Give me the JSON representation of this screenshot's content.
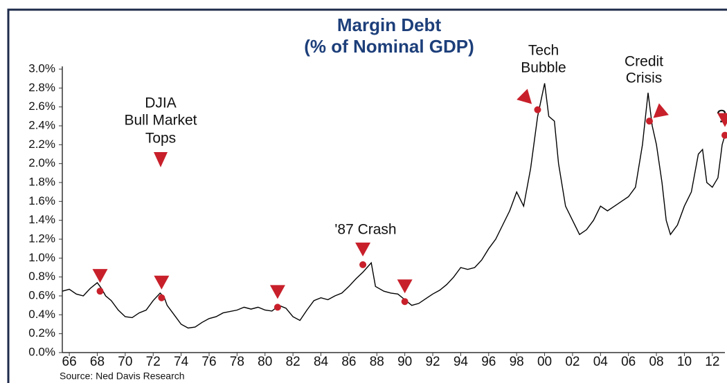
{
  "chart_data": {
    "type": "line",
    "title": "Margin Debt",
    "subtitle": "(% of Nominal GDP)",
    "source": "Source: Ned Davis Research",
    "annotations": [
      {
        "text": [
          "DJIA",
          "Bull Market",
          "Tops"
        ]
      },
      {
        "text": [
          "'87 Crash"
        ]
      },
      {
        "text": [
          "Tech",
          "Bubble"
        ]
      },
      {
        "text": [
          "Credit",
          "Crisis"
        ]
      },
      {
        "text": [
          "?"
        ]
      }
    ],
    "x": [
      1965.5,
      1966,
      1966.5,
      1967,
      1967.5,
      1968,
      1968.3,
      1968.6,
      1969,
      1969.5,
      1970,
      1970.5,
      1971,
      1971.5,
      1972,
      1972.5,
      1972.8,
      1973,
      1973.5,
      1974,
      1974.5,
      1975,
      1975.5,
      1976,
      1976.5,
      1977,
      1978,
      1978.5,
      1979,
      1979.5,
      1980,
      1980.5,
      1981,
      1981.5,
      1982,
      1982.5,
      1983,
      1983.5,
      1984,
      1984.5,
      1985,
      1985.5,
      1986,
      1986.5,
      1987,
      1987.3,
      1987.6,
      1987.9,
      1988.5,
      1989,
      1989.5,
      1990,
      1990.5,
      1991,
      1991.5,
      1992,
      1992.5,
      1993,
      1993.5,
      1994,
      1994.5,
      1995,
      1995.5,
      1996,
      1996.5,
      1997,
      1997.5,
      1998,
      1998.5,
      1999,
      1999.5,
      2000,
      2000.3,
      2000.7,
      2001,
      2001.5,
      2002,
      2002.5,
      2003,
      2003.5,
      2004,
      2004.5,
      2005,
      2005.5,
      2006,
      2006.5,
      2007,
      2007.4,
      2007.7,
      2008,
      2008.4,
      2008.7,
      2009,
      2009.5,
      2010,
      2010.5,
      2011,
      2011.3,
      2011.6,
      2012,
      2012.4,
      2012.7,
      2012.9
    ],
    "series": [
      {
        "color": "#000000",
        "values": [
          0.65,
          0.67,
          0.62,
          0.6,
          0.68,
          0.74,
          0.68,
          0.6,
          0.55,
          0.45,
          0.38,
          0.37,
          0.42,
          0.45,
          0.55,
          0.63,
          0.58,
          0.5,
          0.4,
          0.3,
          0.26,
          0.27,
          0.32,
          0.36,
          0.38,
          0.42,
          0.45,
          0.48,
          0.46,
          0.48,
          0.45,
          0.44,
          0.5,
          0.47,
          0.38,
          0.34,
          0.45,
          0.55,
          0.58,
          0.56,
          0.6,
          0.63,
          0.7,
          0.78,
          0.85,
          0.9,
          0.95,
          0.7,
          0.65,
          0.63,
          0.62,
          0.56,
          0.5,
          0.52,
          0.57,
          0.62,
          0.66,
          0.72,
          0.8,
          0.9,
          0.88,
          0.9,
          0.98,
          1.1,
          1.2,
          1.35,
          1.5,
          1.7,
          1.55,
          1.95,
          2.5,
          2.85,
          2.5,
          2.45,
          2.0,
          1.55,
          1.4,
          1.25,
          1.3,
          1.4,
          1.55,
          1.5,
          1.55,
          1.6,
          1.65,
          1.75,
          2.2,
          2.75,
          2.4,
          2.2,
          1.8,
          1.4,
          1.25,
          1.35,
          1.55,
          1.7,
          2.1,
          2.15,
          1.8,
          1.75,
          1.85,
          2.2,
          2.3
        ]
      }
    ],
    "markers": {
      "color": "#c8202b",
      "x": [
        1968.2,
        1972.6,
        1980.9,
        1987.0,
        1990.0,
        1999.5,
        2007.5,
        2012.9
      ],
      "y": [
        0.65,
        0.58,
        0.48,
        0.93,
        0.54,
        2.57,
        2.45,
        2.3
      ]
    },
    "xlim": [
      1965.5,
      2012.9
    ],
    "ylim": [
      0,
      3
    ],
    "xticks": [
      {
        "value": 1966,
        "label": "66"
      },
      {
        "value": 1968,
        "label": "68"
      },
      {
        "value": 1970,
        "label": "70"
      },
      {
        "value": 1972,
        "label": "72"
      },
      {
        "value": 1974,
        "label": "74"
      },
      {
        "value": 1976,
        "label": "76"
      },
      {
        "value": 1978,
        "label": "78"
      },
      {
        "value": 1980,
        "label": "80"
      },
      {
        "value": 1982,
        "label": "82"
      },
      {
        "value": 1984,
        "label": "84"
      },
      {
        "value": 1986,
        "label": "86"
      },
      {
        "value": 1988,
        "label": "88"
      },
      {
        "value": 1990,
        "label": "90"
      },
      {
        "value": 1992,
        "label": "92"
      },
      {
        "value": 1994,
        "label": "94"
      },
      {
        "value": 1996,
        "label": "96"
      },
      {
        "value": 1998,
        "label": "98"
      },
      {
        "value": 2000,
        "label": "00"
      },
      {
        "value": 2002,
        "label": "02"
      },
      {
        "value": 2004,
        "label": "04"
      },
      {
        "value": 2006,
        "label": "06"
      },
      {
        "value": 2008,
        "label": "08"
      },
      {
        "value": 2010,
        "label": "10"
      },
      {
        "value": 2012,
        "label": "12"
      }
    ],
    "yticks": [
      {
        "value": 0,
        "label": "0.0%"
      },
      {
        "value": 0.2,
        "label": "0.2%"
      },
      {
        "value": 0.4,
        "label": "0.4%"
      },
      {
        "value": 0.6,
        "label": "0.6%"
      },
      {
        "value": 0.8,
        "label": "0.8%"
      },
      {
        "value": 1.0,
        "label": "1.0%"
      },
      {
        "value": 1.2,
        "label": "1.2%"
      },
      {
        "value": 1.4,
        "label": "1.4%"
      },
      {
        "value": 1.6,
        "label": "1.6%"
      },
      {
        "value": 1.8,
        "label": "1.8%"
      },
      {
        "value": 2.0,
        "label": "2.0%"
      },
      {
        "value": 2.2,
        "label": "2.2%"
      },
      {
        "value": 2.4,
        "label": "2.4%"
      },
      {
        "value": 2.6,
        "label": "2.6%"
      },
      {
        "value": 2.8,
        "label": "2.8%"
      },
      {
        "value": 3.0,
        "label": "3.0%"
      }
    ],
    "grid": false
  }
}
